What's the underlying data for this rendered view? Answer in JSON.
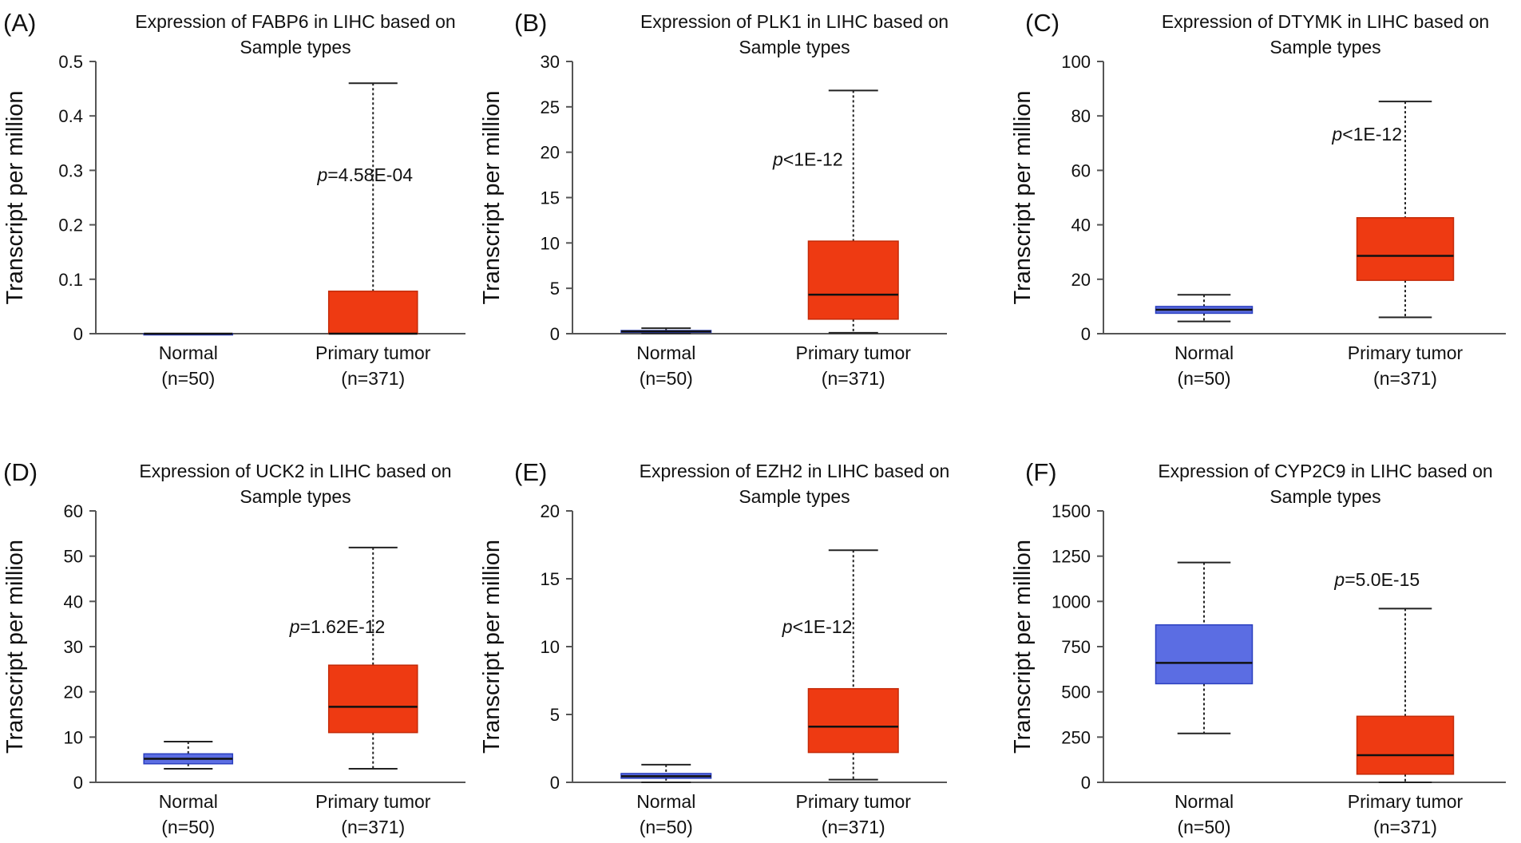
{
  "figure": {
    "ylabel": "Transcript per million",
    "colors": {
      "normal": "#5b6de3",
      "tumor": "#ee3a12",
      "normal_edge": "#2b3fbf",
      "tumor_edge": "#c42a08",
      "median": "#111111"
    }
  },
  "chart_data": [
    {
      "type": "box",
      "panel": "(A)",
      "title_lines": [
        "Expression of FABP6 in LIHC based on",
        "Sample types"
      ],
      "ylabel": "Transcript per million",
      "ylim": [
        0,
        0.5
      ],
      "yticks": [
        "0",
        "0.1",
        "0.2",
        "0.3",
        "0.4",
        "0.5"
      ],
      "ytick_values": [
        0,
        0.1,
        0.2,
        0.3,
        0.4,
        0.5
      ],
      "p_value": {
        "prefix": "p",
        "text": "=4.58E-04",
        "anchor": [
          1,
          0.28
        ]
      },
      "groups": [
        {
          "name": "Normal",
          "n_label": "(n=50)",
          "min": 0,
          "q1": 0,
          "median": 0,
          "q3": 0,
          "max": 0
        },
        {
          "name": "Primary tumor",
          "n_label": "(n=371)",
          "min": 0,
          "q1": 0,
          "median": 0,
          "q3": 0.078,
          "max": 0.46
        }
      ]
    },
    {
      "type": "box",
      "panel": "(B)",
      "title_lines": [
        "Expression of PLK1 in LIHC based on",
        "Sample types"
      ],
      "ylabel": "Transcript per million",
      "ylim": [
        0,
        30
      ],
      "yticks": [
        "0",
        "5",
        "10",
        "15",
        "20",
        "25",
        "30"
      ],
      "ytick_values": [
        0,
        5,
        10,
        15,
        20,
        25,
        30
      ],
      "p_value": {
        "prefix": "p",
        "text": "<1E-12",
        "anchor": [
          0.8,
          18.5
        ]
      },
      "groups": [
        {
          "name": "Normal",
          "n_label": "(n=50)",
          "min": 0.05,
          "q1": 0.15,
          "median": 0.25,
          "q3": 0.35,
          "max": 0.6
        },
        {
          "name": "Primary tumor",
          "n_label": "(n=371)",
          "min": 0.1,
          "q1": 1.6,
          "median": 4.3,
          "q3": 10.2,
          "max": 26.8
        }
      ]
    },
    {
      "type": "box",
      "panel": "(C)",
      "title_lines": [
        "Expression of DTYMK in LIHC based on",
        "Sample types"
      ],
      "ylabel": "Transcript per million",
      "ylim": [
        0,
        100
      ],
      "yticks": [
        "0",
        "20",
        "40",
        "60",
        "80",
        "100"
      ],
      "ytick_values": [
        0,
        20,
        40,
        60,
        80,
        100
      ],
      "p_value": {
        "prefix": "p",
        "text": "<1E-12",
        "anchor": [
          0.85,
          71
        ]
      },
      "groups": [
        {
          "name": "Normal",
          "n_label": "(n=50)",
          "min": 4.5,
          "q1": 7.5,
          "median": 8.8,
          "q3": 10,
          "max": 14.3
        },
        {
          "name": "Primary tumor",
          "n_label": "(n=371)",
          "min": 6,
          "q1": 19.6,
          "median": 28.6,
          "q3": 42.6,
          "max": 85.3
        }
      ]
    },
    {
      "type": "box",
      "panel": "(D)",
      "title_lines": [
        "Expression of UCK2 in LIHC based on",
        "Sample types"
      ],
      "ylabel": "Transcript per million",
      "ylim": [
        0,
        60
      ],
      "yticks": [
        "0",
        "10",
        "20",
        "30",
        "40",
        "50",
        "60"
      ],
      "ytick_values": [
        0,
        10,
        20,
        30,
        40,
        50,
        60
      ],
      "p_value": {
        "prefix": "p",
        "text": "=1.62E-12",
        "anchor": [
          0.85,
          33
        ]
      },
      "groups": [
        {
          "name": "Normal",
          "n_label": "(n=50)",
          "min": 3,
          "q1": 4.1,
          "median": 5.2,
          "q3": 6.3,
          "max": 9
        },
        {
          "name": "Primary tumor",
          "n_label": "(n=371)",
          "min": 3,
          "q1": 11,
          "median": 16.7,
          "q3": 25.9,
          "max": 51.9
        }
      ]
    },
    {
      "type": "box",
      "panel": "(E)",
      "title_lines": [
        "Expression of EZH2 in LIHC based on",
        "Sample types"
      ],
      "ylabel": "Transcript per million",
      "ylim": [
        0,
        20
      ],
      "yticks": [
        "0",
        "5",
        "10",
        "15",
        "20"
      ],
      "ytick_values": [
        0,
        5,
        10,
        15,
        20
      ],
      "p_value": {
        "prefix": "p",
        "text": "<1E-12",
        "anchor": [
          0.85,
          11
        ]
      },
      "groups": [
        {
          "name": "Normal",
          "n_label": "(n=50)",
          "min": 0,
          "q1": 0.3,
          "median": 0.45,
          "q3": 0.65,
          "max": 1.3
        },
        {
          "name": "Primary tumor",
          "n_label": "(n=371)",
          "min": 0.2,
          "q1": 2.2,
          "median": 4.1,
          "q3": 6.9,
          "max": 17.1
        }
      ]
    },
    {
      "type": "box",
      "panel": "(F)",
      "title_lines": [
        "Expression of CYP2C9 in LIHC based on",
        "Sample types"
      ],
      "ylabel": "Transcript per million",
      "ylim": [
        0,
        1500
      ],
      "yticks": [
        "0",
        "250",
        "500",
        "750",
        "1000",
        "1250",
        "1500"
      ],
      "ytick_values": [
        0,
        250,
        500,
        750,
        1000,
        1250,
        1500
      ],
      "p_value": {
        "prefix": "p",
        "text": "=5.0E-15",
        "anchor": [
          0.9,
          1085
        ]
      },
      "groups": [
        {
          "name": "Normal",
          "n_label": "(n=50)",
          "min": 270,
          "q1": 545,
          "median": 660,
          "q3": 870,
          "max": 1215
        },
        {
          "name": "Primary tumor",
          "n_label": "(n=371)",
          "min": 0,
          "q1": 45,
          "median": 150,
          "q3": 365,
          "max": 960
        }
      ]
    }
  ]
}
